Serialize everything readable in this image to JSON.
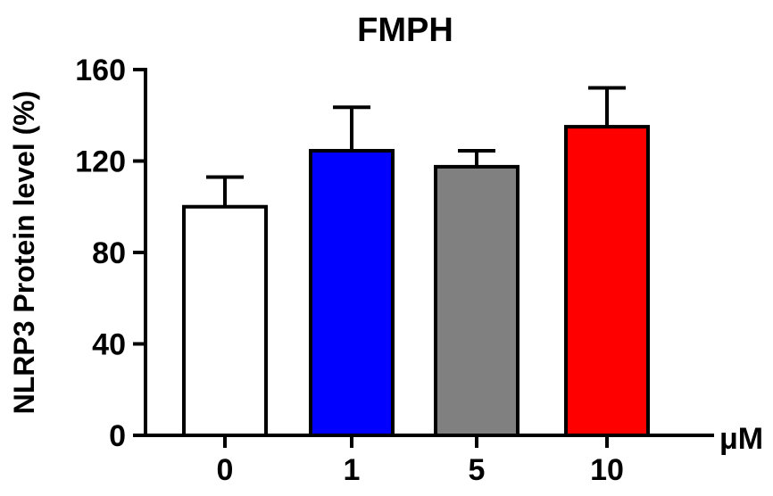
{
  "chart_data": {
    "type": "bar",
    "title": "FMPH",
    "ylabel": "NLRP3 Protein level (%)",
    "xunit": "μM",
    "categories": [
      "0",
      "1",
      "5",
      "10"
    ],
    "values": [
      100,
      124.5,
      117.5,
      135
    ],
    "errors": [
      13,
      19,
      7,
      17
    ],
    "bar_colors": [
      "#ffffff",
      "#0000ff",
      "#808080",
      "#ff0000"
    ],
    "ylim": [
      0,
      160
    ],
    "yticks": [
      "0",
      "40",
      "80",
      "120",
      "160"
    ],
    "grid": false,
    "legend": "none"
  }
}
